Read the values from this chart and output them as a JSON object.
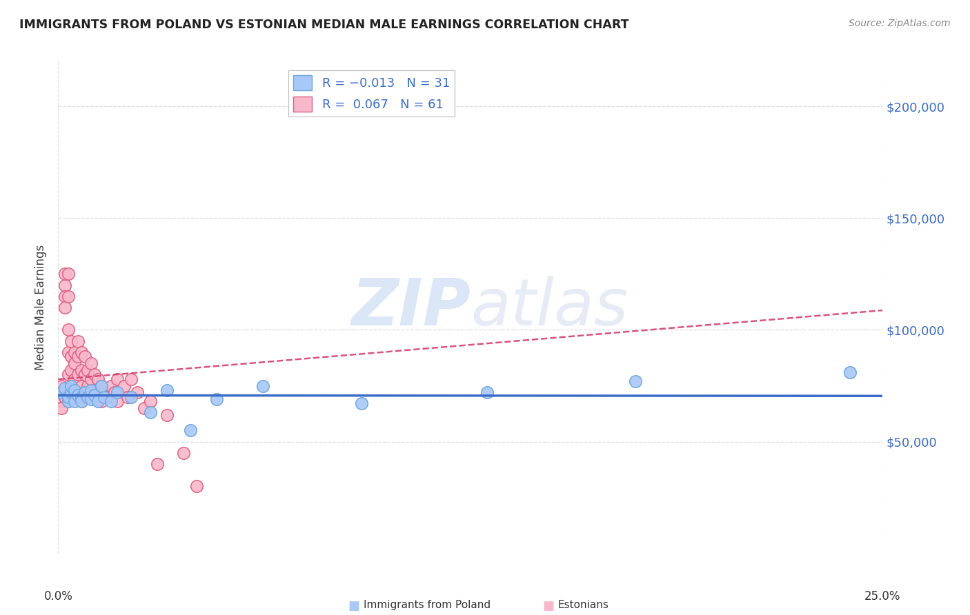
{
  "title": "IMMIGRANTS FROM POLAND VS ESTONIAN MEDIAN MALE EARNINGS CORRELATION CHART",
  "source": "Source: ZipAtlas.com",
  "ylabel": "Median Male Earnings",
  "xlim": [
    0.0,
    0.25
  ],
  "ylim": [
    0,
    220000
  ],
  "yticks": [
    50000,
    100000,
    150000,
    200000
  ],
  "ytick_labels": [
    "$50,000",
    "$100,000",
    "$150,000",
    "$200,000"
  ],
  "watermark_ZIP": "ZIP",
  "watermark_atlas": "atlas",
  "blue_color": "#6fa8dc",
  "pink_color": "#e06080",
  "blue_line_color": "#3a6cc8",
  "pink_line_color": "#d44070",
  "blue_fill_color": "#a8c8f8",
  "pink_fill_color": "#f8b8cc",
  "blue_points_x": [
    0.001,
    0.002,
    0.003,
    0.003,
    0.004,
    0.004,
    0.005,
    0.005,
    0.006,
    0.007,
    0.007,
    0.008,
    0.009,
    0.01,
    0.01,
    0.011,
    0.012,
    0.013,
    0.014,
    0.016,
    0.018,
    0.022,
    0.028,
    0.033,
    0.04,
    0.048,
    0.062,
    0.092,
    0.13,
    0.175,
    0.24
  ],
  "blue_points_y": [
    72000,
    74000,
    68000,
    70000,
    72000,
    75000,
    68000,
    73000,
    71000,
    70000,
    68000,
    72000,
    70000,
    69000,
    73000,
    71000,
    68000,
    75000,
    70000,
    68000,
    72000,
    70000,
    63000,
    73000,
    55000,
    69000,
    75000,
    67000,
    72000,
    77000,
    81000
  ],
  "pink_points_x": [
    0.001,
    0.001,
    0.001,
    0.001,
    0.002,
    0.002,
    0.002,
    0.002,
    0.002,
    0.003,
    0.003,
    0.003,
    0.003,
    0.003,
    0.003,
    0.004,
    0.004,
    0.004,
    0.004,
    0.005,
    0.005,
    0.005,
    0.005,
    0.006,
    0.006,
    0.006,
    0.006,
    0.007,
    0.007,
    0.007,
    0.007,
    0.008,
    0.008,
    0.008,
    0.009,
    0.009,
    0.01,
    0.01,
    0.01,
    0.011,
    0.011,
    0.012,
    0.012,
    0.013,
    0.013,
    0.014,
    0.015,
    0.016,
    0.017,
    0.018,
    0.018,
    0.02,
    0.021,
    0.022,
    0.024,
    0.026,
    0.028,
    0.03,
    0.033,
    0.038,
    0.042
  ],
  "pink_points_y": [
    75000,
    68000,
    72000,
    65000,
    120000,
    125000,
    115000,
    110000,
    70000,
    125000,
    115000,
    100000,
    90000,
    80000,
    68000,
    95000,
    88000,
    82000,
    75000,
    90000,
    85000,
    78000,
    72000,
    95000,
    88000,
    80000,
    72000,
    90000,
    82000,
    75000,
    68000,
    88000,
    80000,
    72000,
    82000,
    75000,
    85000,
    78000,
    72000,
    80000,
    73000,
    78000,
    72000,
    75000,
    68000,
    72000,
    70000,
    75000,
    72000,
    78000,
    68000,
    75000,
    70000,
    78000,
    72000,
    65000,
    68000,
    40000,
    62000,
    45000,
    30000
  ],
  "grid_color": "#dddddd",
  "marker_size": 160
}
